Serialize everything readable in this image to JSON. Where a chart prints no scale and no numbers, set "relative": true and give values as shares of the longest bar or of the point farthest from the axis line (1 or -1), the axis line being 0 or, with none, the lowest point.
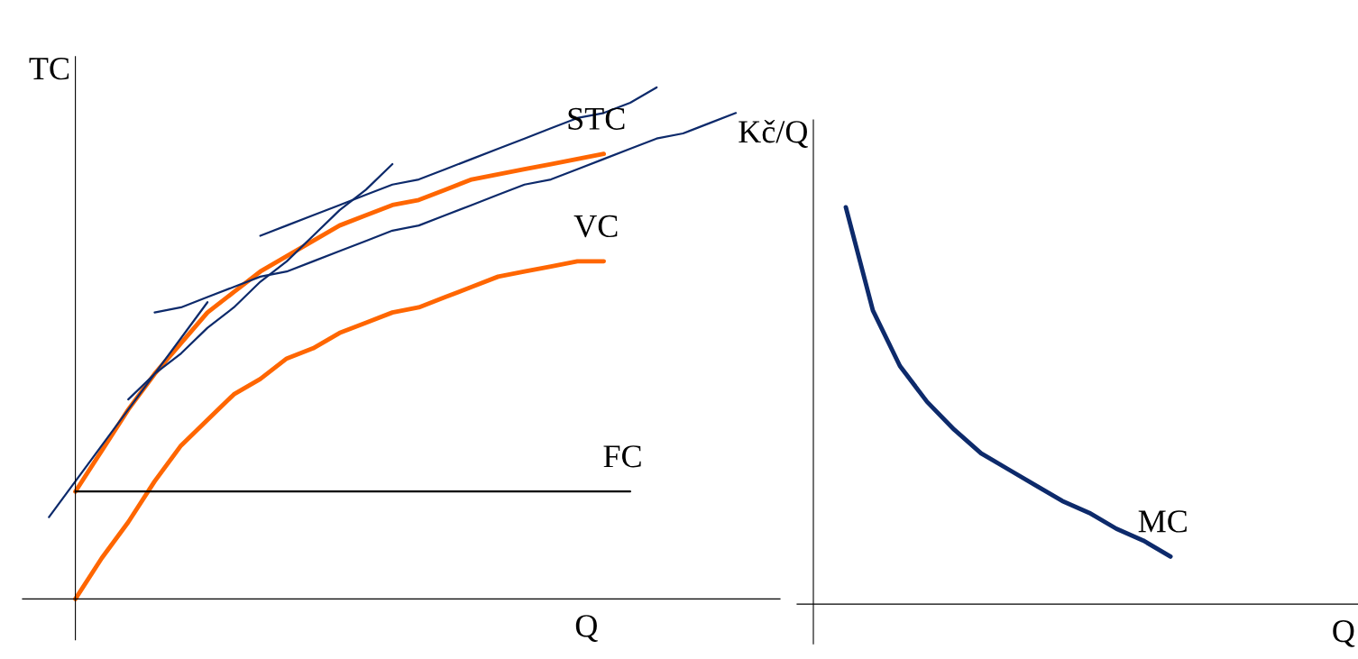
{
  "chart_data": [
    {
      "type": "line",
      "relative": true,
      "xlabel": "Q",
      "ylabel": "TC",
      "marker": "none",
      "line_style": "solid",
      "categories": [
        null,
        null,
        null,
        null,
        null,
        null,
        null,
        null,
        null,
        null,
        null,
        null,
        null,
        null,
        null,
        null,
        null,
        null,
        null,
        null,
        null,
        null,
        null,
        null,
        null,
        null,
        null
      ],
      "series": [
        {
          "name": "STC",
          "color": "#ff6600",
          "values": [
            null,
            0.21,
            0.29,
            0.37,
            0.44,
            0.5,
            0.56,
            0.6,
            0.64,
            0.67,
            0.7,
            0.73,
            0.75,
            0.77,
            0.78,
            0.8,
            0.82,
            0.83,
            0.84,
            0.85,
            0.86,
            0.87,
            null,
            null,
            null,
            null,
            null
          ]
        },
        {
          "name": "VC",
          "color": "#ff6600",
          "values": [
            null,
            0,
            0.08,
            0.15,
            0.23,
            0.3,
            0.35,
            0.4,
            0.43,
            0.47,
            0.49,
            0.52,
            0.54,
            0.56,
            0.57,
            0.59,
            0.61,
            0.63,
            0.64,
            0.65,
            0.66,
            0.66,
            null,
            null,
            null,
            null,
            null
          ]
        },
        {
          "name": "FC",
          "color": "#000000",
          "values": [
            null,
            0.21,
            0.21,
            0.21,
            0.21,
            0.21,
            0.21,
            0.21,
            0.21,
            0.21,
            0.21,
            0.21,
            0.21,
            0.21,
            0.21,
            0.21,
            0.21,
            0.21,
            0.21,
            0.21,
            0.21,
            0.21,
            0.21,
            null,
            null,
            null,
            null
          ]
        },
        {
          "color": "#0d2a6b",
          "values": [
            0.16,
            0.23,
            0.3,
            0.37,
            0.44,
            0.51,
            0.58,
            null,
            null,
            null,
            null,
            null,
            null,
            null,
            null,
            null,
            null,
            null,
            null,
            null,
            null,
            null,
            null,
            null,
            null,
            null,
            null
          ]
        },
        {
          "color": "#0d2a6b",
          "values": [
            null,
            null,
            null,
            0.39,
            0.44,
            0.48,
            0.53,
            0.57,
            0.62,
            0.66,
            0.71,
            0.76,
            0.8,
            0.85,
            null,
            null,
            null,
            null,
            null,
            null,
            null,
            null,
            null,
            null,
            null,
            null,
            null
          ]
        },
        {
          "color": "#0d2a6b",
          "values": [
            null,
            null,
            null,
            null,
            0.56,
            0.57,
            0.59,
            0.61,
            0.63,
            0.64,
            0.66,
            0.68,
            0.7,
            0.72,
            0.73,
            0.75,
            0.77,
            0.79,
            0.81,
            0.82,
            0.84,
            0.86,
            0.88,
            0.9,
            0.91,
            0.93,
            0.95
          ]
        },
        {
          "color": "#0d2a6b",
          "values": [
            null,
            null,
            null,
            null,
            null,
            null,
            null,
            null,
            0.71,
            0.73,
            0.75,
            0.77,
            0.79,
            0.81,
            0.82,
            0.84,
            0.86,
            0.88,
            0.9,
            0.92,
            0.94,
            0.95,
            0.97,
            1.0,
            null,
            null,
            null
          ]
        }
      ]
    },
    {
      "type": "line",
      "relative": true,
      "xlabel": "Q",
      "ylabel": "Kč/Q",
      "marker": "none",
      "line_style": "solid",
      "categories": [
        null,
        null,
        null,
        null,
        null,
        null,
        null,
        null,
        null,
        null,
        null,
        null,
        null,
        null,
        null,
        null,
        null,
        null,
        null
      ],
      "series": [
        {
          "name": "MC",
          "color": "#0d2a6b",
          "values": [
            1.0,
            0.74,
            0.6,
            0.51,
            0.44,
            0.38,
            0.34,
            0.3,
            0.26,
            0.23,
            0.19,
            0.16,
            0.12,
            null,
            null,
            null,
            null,
            null,
            null
          ]
        }
      ]
    }
  ]
}
